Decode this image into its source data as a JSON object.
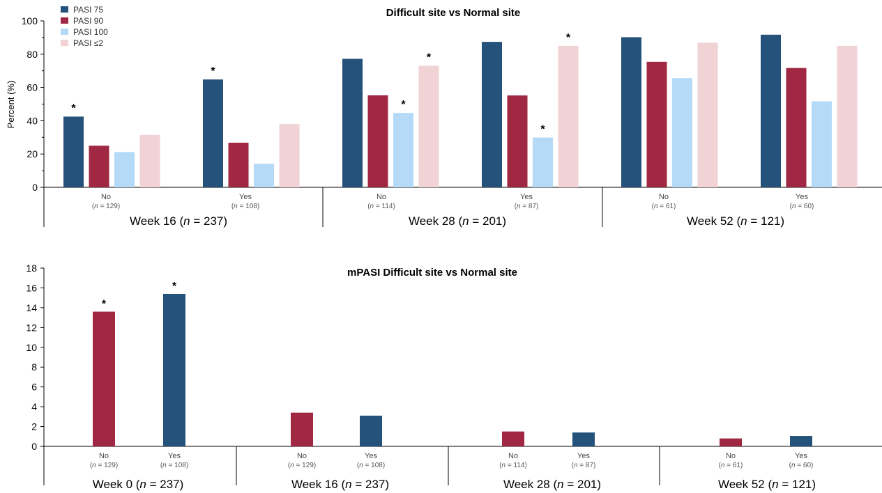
{
  "colors": {
    "pasi75": "#24527a",
    "pasi90": "#a02842",
    "pasi100": "#b4daf8",
    "pasi_le2": "#f1d2d5",
    "axis": "#000000"
  },
  "chart_data": [
    {
      "type": "bar",
      "title": "Difficult site vs Normal site",
      "ylabel": "Percent (%)",
      "ylim": [
        0,
        100
      ],
      "yticks": [
        0,
        20,
        40,
        60,
        80,
        100
      ],
      "legend": {
        "placement": "top-left",
        "entries": [
          "PASI 75",
          "PASI 90",
          "PASI 100",
          "PASI ≤2"
        ]
      },
      "series": [
        {
          "name": "PASI 75",
          "values": [
            42.5,
            64.8,
            77.2,
            87.4,
            90.2,
            91.7
          ]
        },
        {
          "name": "PASI 90",
          "values": [
            25.0,
            26.8,
            55.3,
            55.2,
            75.4,
            71.7
          ]
        },
        {
          "name": "PASI 100",
          "values": [
            21.2,
            14.2,
            44.7,
            29.9,
            65.6,
            51.7
          ]
        },
        {
          "name": "PASI ≤2",
          "values": [
            31.5,
            38.0,
            73.0,
            85.0,
            86.9,
            85.0
          ]
        }
      ],
      "categories": [
        {
          "label": "No",
          "n": "(n = 129)"
        },
        {
          "label": "Yes",
          "n": "(n = 108)"
        },
        {
          "label": "No",
          "n": "(n = 114)"
        },
        {
          "label": "Yes",
          "n": "(n = 87)"
        },
        {
          "label": "No",
          "n": "(n = 61)"
        },
        {
          "label": "Yes",
          "n": "(n = 60)"
        }
      ],
      "groups": [
        "Week 16 (n = 237)",
        "Week 28 (n = 201)",
        "Week 52 (n = 121)"
      ],
      "annotations": [
        {
          "text": "*",
          "category": 0,
          "series": 0
        },
        {
          "text": "*",
          "category": 1,
          "series": 0
        },
        {
          "text": "*",
          "category": 2,
          "series": 2
        },
        {
          "text": "*",
          "category": 2,
          "series": 3
        },
        {
          "text": "*",
          "category": 3,
          "series": 2
        },
        {
          "text": "*",
          "category": 3,
          "series": 3
        }
      ]
    },
    {
      "type": "bar",
      "title": "mPASI Difficult site vs Normal site",
      "ylim": [
        0,
        18
      ],
      "yticks": [
        0,
        2,
        4,
        6,
        8,
        10,
        12,
        14,
        16,
        18
      ],
      "values": [
        13.6,
        15.4,
        3.4,
        3.1,
        1.5,
        1.4,
        0.8,
        1.05
      ],
      "categories": [
        {
          "label": "No",
          "n": "(n = 129)"
        },
        {
          "label": "Yes",
          "n": "(n = 108)"
        },
        {
          "label": "No",
          "n": "(n = 129)"
        },
        {
          "label": "Yes",
          "n": "(n = 108)"
        },
        {
          "label": "No",
          "n": "(n = 114)"
        },
        {
          "label": "Yes",
          "n": "(n = 87)"
        },
        {
          "label": "No",
          "n": "(n = 61)"
        },
        {
          "label": "Yes",
          "n": "(n = 60)"
        }
      ],
      "groups": [
        "Week 0 (n = 237)",
        "Week 16 (n = 237)",
        "Week 28 (n = 201)",
        "Week 52 (n = 121)"
      ],
      "annotations": [
        {
          "text": "*",
          "category": 0
        },
        {
          "text": "*",
          "category": 1
        }
      ]
    }
  ]
}
